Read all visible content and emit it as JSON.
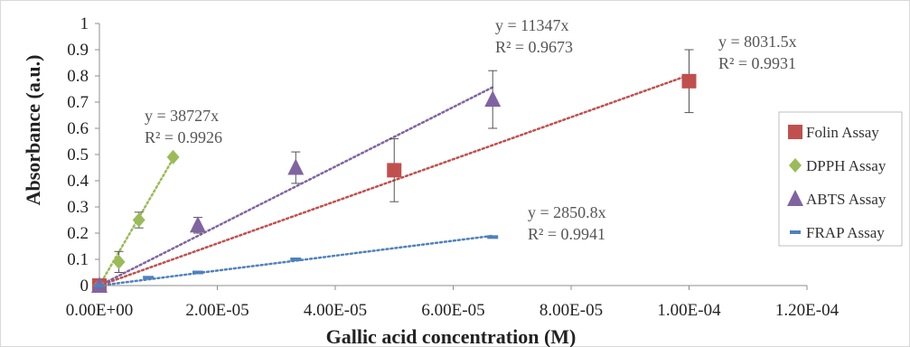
{
  "chart_data": {
    "type": "scatter",
    "xlabel": "Gallic acid concentration (M)",
    "ylabel": "Absorbance (a.u.)",
    "xlim": [
      0,
      0.00012
    ],
    "ylim": [
      0,
      1
    ],
    "x_ticks": [
      0,
      2e-05,
      4e-05,
      6e-05,
      8e-05,
      0.0001,
      0.00012
    ],
    "x_tick_labels": [
      "0.00E+00",
      "2.00E-05",
      "4.00E-05",
      "6.00E-05",
      "8.00E-05",
      "1.00E-04",
      "1.20E-04"
    ],
    "y_ticks": [
      0,
      0.1,
      0.2,
      0.3,
      0.4,
      0.5,
      0.6,
      0.7,
      0.8,
      0.9,
      1
    ],
    "y_tick_labels": [
      "0",
      "0.1",
      "0.2",
      "0.3",
      "0.4",
      "0.5",
      "0.6",
      "0.7",
      "0.8",
      "0.9",
      "1"
    ],
    "grid": false,
    "legend_position": "right",
    "series": [
      {
        "name": "Folin Assay",
        "marker": "square",
        "color": "#c0504d",
        "x": [
          0,
          5e-05,
          0.0001
        ],
        "y": [
          0,
          0.44,
          0.78
        ],
        "err": [
          0,
          0.12,
          0.12
        ],
        "trend": {
          "slope": 8031.5,
          "x_end": 0.0001,
          "equation": "y = 8031.5x",
          "r2": "R² = 0.9931"
        }
      },
      {
        "name": "DPPH Assay",
        "marker": "diamond",
        "color": "#9bbb59",
        "x": [
          0,
          3.3e-06,
          6.7e-06,
          1.25e-05
        ],
        "y": [
          0,
          0.09,
          0.25,
          0.49
        ],
        "err": [
          0,
          0.04,
          0.03,
          0.0
        ],
        "trend": {
          "slope": 38727,
          "x_end": 1.25e-05,
          "equation": "y = 38727x",
          "r2": "R² = 0.9926"
        }
      },
      {
        "name": "ABTS Assay",
        "marker": "triangle",
        "color": "#8064a2",
        "x": [
          0,
          1.67e-05,
          3.33e-05,
          6.67e-05
        ],
        "y": [
          0,
          0.23,
          0.45,
          0.71
        ],
        "err": [
          0,
          0.03,
          0.06,
          0.11
        ],
        "trend": {
          "slope": 11347,
          "x_end": 6.67e-05,
          "equation": "y = 11347x",
          "r2": "R² = 0.9673"
        }
      },
      {
        "name": "FRAP Assay",
        "marker": "dash",
        "color": "#4f81bd",
        "x": [
          0,
          8.3e-06,
          1.67e-05,
          3.33e-05,
          6.67e-05
        ],
        "y": [
          0,
          0.03,
          0.05,
          0.1,
          0.185
        ],
        "err": [
          0,
          0,
          0,
          0,
          0
        ],
        "trend": {
          "slope": 2850.8,
          "x_end": 6.67e-05,
          "equation": "y = 2850.8x",
          "r2": "R² = 0.9941"
        }
      }
    ]
  }
}
